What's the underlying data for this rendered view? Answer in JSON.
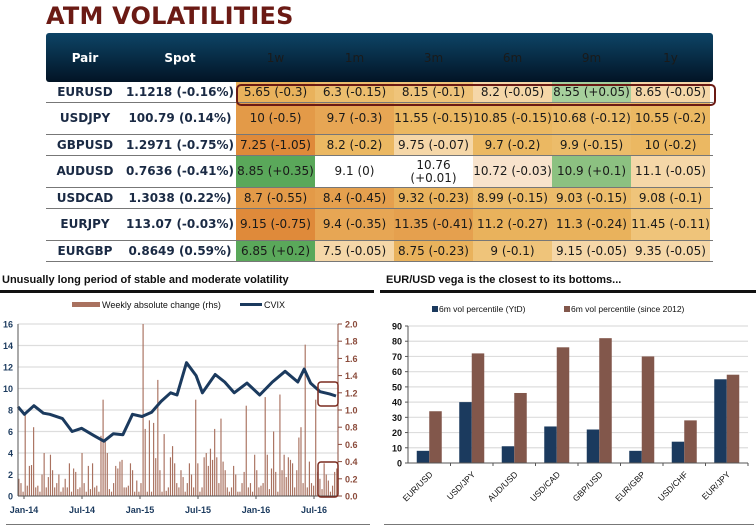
{
  "page": {
    "title": "ATM VOLATILITIES"
  },
  "table": {
    "headers": [
      "Pair",
      "Spot",
      "1w",
      "1m",
      "3m",
      "6m",
      "9m",
      "1y"
    ],
    "rows": [
      {
        "pair": "EURUSD",
        "spot": "1.1218 (-0.16%)",
        "cells": [
          "5.65 (-0.3)",
          "6.3 (-0.15)",
          "8.15 (-0.1)",
          "8.2 (-0.05)",
          "8.55 (+0.05)",
          "8.65 (-0.05)"
        ],
        "colors": [
          "#e9b25c",
          "#ecbe6e",
          "#efc47a",
          "#f5d7a8",
          "#a6cf9c",
          "#f5d7a8"
        ],
        "highlighted": true
      },
      {
        "pair": "USDJPY",
        "spot": "100.79 (0.14%)",
        "cells": [
          "10 (-0.5)",
          "9.7 (-0.3)",
          "11.55 (-0.15)",
          "10.85 (-0.15)",
          "10.68 (-0.12)",
          "10.55 (-0.2)"
        ],
        "colors": [
          "#e39a48",
          "#e7a654",
          "#ebb862",
          "#ebb862",
          "#ecbc6a",
          "#ebb862"
        ]
      },
      {
        "pair": "GBPUSD",
        "spot": "1.2971 (-0.75%)",
        "cells": [
          "7.25 (-1.05)",
          "8.2 (-0.2)",
          "9.75 (-0.07)",
          "9.7 (-0.2)",
          "9.9 (-0.15)",
          "10 (-0.2)"
        ],
        "colors": [
          "#df8a3a",
          "#ebb862",
          "#f5d7a8",
          "#ebb862",
          "#ecbc6a",
          "#ebb862"
        ]
      },
      {
        "pair": "AUDUSD",
        "spot": "0.7636 (-0.41%)",
        "cells": [
          "8.85 (+0.35)",
          "9.1 (0)",
          "10.76 (+0.01)",
          "10.72 (-0.03)",
          "10.9 (+0.1)",
          "11.1 (-0.05)"
        ],
        "colors": [
          "#5aa85a",
          "#ffffff",
          "#ffffff",
          "#f8e3cc",
          "#8cc181",
          "#f5d7a8"
        ]
      },
      {
        "pair": "USDCAD",
        "spot": "1.3038 (0.22%)",
        "cells": [
          "8.7 (-0.55)",
          "8.4 (-0.45)",
          "9.32 (-0.23)",
          "8.99 (-0.15)",
          "9.03 (-0.15)",
          "9.08 (-0.1)"
        ],
        "colors": [
          "#e39a48",
          "#e5a04e",
          "#e9b25c",
          "#ecbc6a",
          "#ecbc6a",
          "#efc47a"
        ]
      },
      {
        "pair": "EURJPY",
        "spot": "113.07 (-0.03%)",
        "cells": [
          "9.15 (-0.75)",
          "9.4 (-0.35)",
          "11.35 (-0.41)",
          "11.2 (-0.27)",
          "11.3 (-0.24)",
          "11.45 (-0.11)"
        ],
        "colors": [
          "#df8a3a",
          "#e7a654",
          "#e5a04e",
          "#e9b25c",
          "#e9b25c",
          "#efc47a"
        ]
      },
      {
        "pair": "EURGBP",
        "spot": "0.8649 (0.59%)",
        "cells": [
          "6.85 (+0.2)",
          "7.5 (-0.05)",
          "8.75 (-0.23)",
          "9 (-0.1)",
          "9.15 (-0.05)",
          "9.35 (-0.05)"
        ],
        "colors": [
          "#5aa85a",
          "#f5d7a8",
          "#e9b25c",
          "#efc47a",
          "#f5d7a8",
          "#f5d7a8"
        ]
      }
    ]
  },
  "chart_data": [
    {
      "type": "line",
      "title": "Unusually long period of stable and moderate volatility",
      "legend": [
        "Weekly absolute change (rhs)",
        "CVIX"
      ],
      "legend_position": "top",
      "x_ticks": [
        "Jan-14",
        "Jul-14",
        "Jan-15",
        "Jul-15",
        "Jan-16",
        "Jul-16"
      ],
      "y_left": {
        "range": [
          0,
          16
        ],
        "ticks": [
          0,
          2,
          4,
          6,
          8,
          10,
          12,
          14,
          16
        ]
      },
      "y_right": {
        "range": [
          0,
          2.0
        ],
        "ticks": [
          "0.0",
          "0.2",
          "0.4",
          "0.6",
          "0.8",
          "1.0",
          "1.2",
          "1.4",
          "1.6",
          "1.8",
          "2.0"
        ]
      },
      "grid": true,
      "series": [
        {
          "name": "CVIX",
          "axis": "left",
          "color": "#1b3a5e",
          "x": [
            0,
            0.02,
            0.05,
            0.08,
            0.1,
            0.14,
            0.17,
            0.2,
            0.24,
            0.27,
            0.3,
            0.33,
            0.36,
            0.39,
            0.42,
            0.45,
            0.48,
            0.5,
            0.53,
            0.56,
            0.58,
            0.62,
            0.65,
            0.68,
            0.72,
            0.76,
            0.8,
            0.84,
            0.88,
            0.9,
            0.92,
            0.95,
            0.98,
            1.0
          ],
          "values": [
            8.3,
            7.6,
            8.4,
            7.7,
            7.6,
            7.2,
            6.0,
            6.3,
            5.6,
            5.1,
            5.8,
            5.7,
            7.6,
            7.4,
            7.8,
            8.8,
            9.6,
            9.4,
            12.4,
            11.2,
            9.6,
            11.3,
            10.6,
            9.6,
            10.5,
            9.4,
            10.6,
            11.6,
            10.6,
            11.8,
            10.5,
            9.7,
            9.5,
            9.3
          ]
        },
        {
          "name": "Weekly absolute change (rhs)",
          "axis": "right",
          "color": "#a9715f",
          "values": [
            0.2,
            0.15,
            0.05,
            0.95,
            0.12,
            0.35,
            0.36,
            0.8,
            0.1,
            0.12,
            0.05,
            0.25,
            0.5,
            0.1,
            0.22,
            0.48,
            0.3,
            0.1,
            0.15,
            0.25,
            0.05,
            0.1,
            0.2,
            0.1,
            0.38,
            0.05,
            0.32,
            0.28,
            0.08,
            0.1,
            0.5,
            0.15,
            0.05,
            0.35,
            0.08,
            0.38,
            0.1,
            0.12,
            0.05,
            0.7,
            1.12,
            0.65,
            0.5,
            0.08,
            0.05,
            0.15,
            0.35,
            0.32,
            0.4,
            0.42,
            0.1,
            0.1,
            0.12,
            0.38,
            0.3,
            0.05,
            0.18,
            0.05,
            0.15,
            2.0,
            0.78,
            0.05,
            0.88,
            0.05,
            0.85,
            0.44,
            1.35,
            0.3,
            0.05,
            0.72,
            0.06,
            0.1,
            0.45,
            0.58,
            0.38,
            0.15,
            0.1,
            0.3,
            0.22,
            0.05,
            0.15,
            0.38,
            0.25,
            0.1,
            1.12,
            0.38,
            0.05,
            0.1,
            0.45,
            0.5,
            0.35,
            0.55,
            0.42,
            0.78,
            0.45,
            0.15,
            0.9,
            0.4,
            0.3,
            0.1,
            0.05,
            0.1,
            0.35,
            0.25,
            0.05,
            0.05,
            0.15,
            0.28,
            1.05,
            0.1,
            0.15,
            0.05,
            0.48,
            0.3,
            0.1,
            0.12,
            0.15,
            1.15,
            0.48,
            0.08,
            0.32,
            0.75,
            0.28,
            0.05,
            1.18,
            0.3,
            0.48,
            0.22,
            0.45,
            0.42,
            0.38,
            0.1,
            0.3,
            0.68,
            0.8,
            0.15,
            1.76,
            0.1,
            0.4,
            0.15,
            0.12,
            1.12,
            0.28,
            0.2,
            0.08,
            0.38,
            0.25,
            0.18,
            0.05,
            0.12,
            0.28,
            0.32
          ]
        }
      ],
      "annotations": [
        "box around recent CVIX (~9.3-9.7)",
        "box around recent weekly changes (~0.1-0.35)"
      ]
    },
    {
      "type": "bar",
      "title": "EUR/USD vega is the closest to its bottoms...",
      "legend": [
        "6m vol percentile (YtD)",
        "6m vol percentile (since 2012)"
      ],
      "legend_position": "top",
      "categories": [
        "EUR/USD",
        "USD/JPY",
        "AUD/USD",
        "USD/CAD",
        "GBP/USD",
        "EUR/GBP",
        "USD/CHF",
        "EUR/JPY"
      ],
      "ylim": [
        0,
        90
      ],
      "y_ticks": [
        0,
        10,
        20,
        30,
        40,
        50,
        60,
        70,
        80,
        90
      ],
      "grid": true,
      "series": [
        {
          "name": "6m vol percentile (YtD)",
          "color": "#1b3a5e",
          "values": [
            8,
            40,
            11,
            24,
            22,
            8,
            14,
            55
          ]
        },
        {
          "name": "6m vol percentile (since 2012)",
          "color": "#82574b",
          "values": [
            34,
            72,
            46,
            76,
            82,
            70,
            28,
            58
          ]
        }
      ]
    }
  ]
}
